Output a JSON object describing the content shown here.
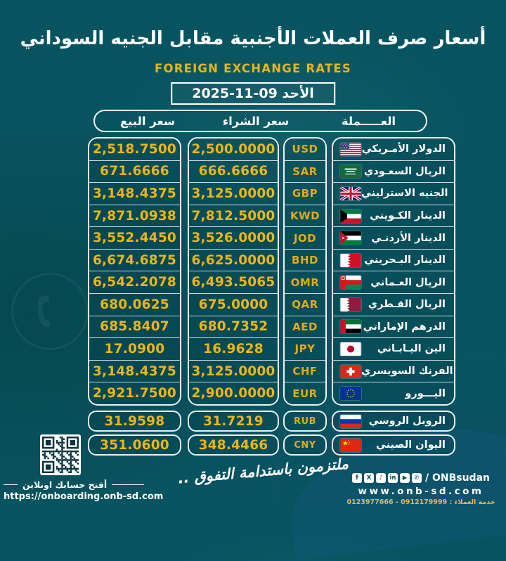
{
  "header": {
    "title_ar": "أسعار صرف العملات الأجنبية مقابل الجنيه السوداني",
    "subtitle_en": "FOREIGN EXCHANGE RATES",
    "date_label": "الأحد 09-11-2025"
  },
  "columns": {
    "sell_ar": "سعر البيع",
    "buy_ar": "سعر الشراء",
    "currency_ar": "العـــــملة"
  },
  "rates": [
    {
      "code": "USD",
      "name_ar": "الدولار الأمـريكي",
      "flag": "us",
      "buy": "2,500.0000",
      "sell": "2,518.7500"
    },
    {
      "code": "SAR",
      "name_ar": "الريال السعـودي",
      "flag": "sa",
      "buy": "666.6666",
      "sell": "671.6666"
    },
    {
      "code": "GBP",
      "name_ar": "الجنيه الاسترليني",
      "flag": "gb",
      "buy": "3,125.0000",
      "sell": "3,148.4375"
    },
    {
      "code": "KWD",
      "name_ar": "الدينار الكـويتي",
      "flag": "kw",
      "buy": "7,812.5000",
      "sell": "7,871.0938"
    },
    {
      "code": "JOD",
      "name_ar": "الدينار الأردنـي",
      "flag": "jo",
      "buy": "3,526.0000",
      "sell": "3,552.4450"
    },
    {
      "code": "BHD",
      "name_ar": "الدينار البـحريني",
      "flag": "bh",
      "buy": "6,625.0000",
      "sell": "6,674.6875"
    },
    {
      "code": "OMR",
      "name_ar": "الريال العـماني",
      "flag": "om",
      "buy": "6,493.5065",
      "sell": "6,542.2078"
    },
    {
      "code": "QAR",
      "name_ar": "الريال القـطري",
      "flag": "qa",
      "buy": "675.0000",
      "sell": "680.0625"
    },
    {
      "code": "AED",
      "name_ar": "الدرهم الإماراتي",
      "flag": "ae",
      "buy": "680.7352",
      "sell": "685.8407"
    },
    {
      "code": "JPY",
      "name_ar": "الين اليـابـاني",
      "flag": "jp",
      "buy": "16.9628",
      "sell": "17.0900"
    },
    {
      "code": "CHF",
      "name_ar": "الفرنك السويسري",
      "flag": "ch",
      "buy": "3,125.0000",
      "sell": "3,148.4375"
    },
    {
      "code": "EUR",
      "name_ar": "اليـــورو",
      "flag": "eu",
      "buy": "2,900.0000",
      "sell": "2,921.7500"
    }
  ],
  "rates_extra": [
    {
      "code": "RUB",
      "name_ar": "الروبل الروسي",
      "flag": "ru",
      "buy": "31.7219",
      "sell": "31.9598"
    },
    {
      "code": "CNY",
      "name_ar": "اليوان الصيني",
      "flag": "cn",
      "buy": "348.4466",
      "sell": "351.0600"
    }
  ],
  "footer": {
    "qr_label_ar": "أفتح حسابك اونلاين",
    "onboarding_url": "https://onboarding.onb-sd.com",
    "slogan_ar": "ملتزمون باستدامة التفوق ..",
    "social_handle": "/ ONBsudan",
    "website": "www.onb-sd.com",
    "customer_service_ar": "خدمة العملاء : 0912179999 - 0123977666",
    "social_icons": [
      "facebook",
      "x",
      "tiktok",
      "linkedin",
      "youtube",
      "whatsapp"
    ]
  },
  "colors": {
    "background_teal": "#075460",
    "gold_accent": "#ecb616",
    "text_white": "#ffffff"
  }
}
